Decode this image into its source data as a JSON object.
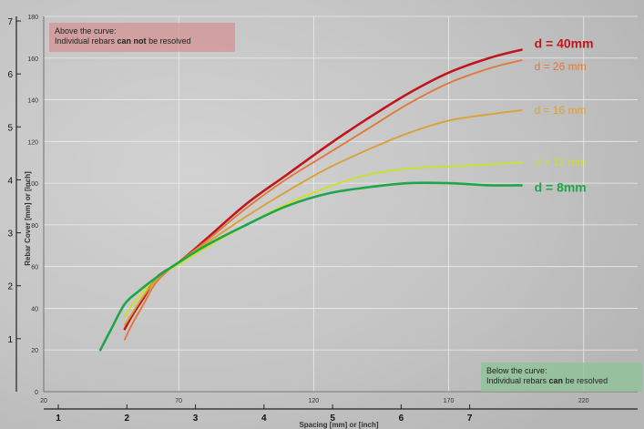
{
  "chart_data": {
    "type": "line",
    "xlabel": "Spacing [mm] or [inch]",
    "ylabel": "Rebar Cover [mm] or [inch]",
    "x_ticks_mm": [
      20,
      70,
      120,
      170,
      220
    ],
    "x_ticks_inch": [
      1,
      2,
      3,
      4,
      5,
      6,
      7
    ],
    "y_ticks_mm": [
      0,
      20,
      40,
      60,
      80,
      100,
      120,
      140,
      160,
      180
    ],
    "y_ticks_inch": [
      1,
      2,
      3,
      4,
      5,
      6,
      7
    ],
    "xlim": [
      20,
      240
    ],
    "ylim": [
      0,
      180
    ],
    "grid": true,
    "annotations": {
      "top": {
        "line1": "Above the curve:",
        "line2_pre": "Individual rebars ",
        "line2_bold": "can not",
        "line2_post": " be resolved"
      },
      "bottom": {
        "line1": "Below the curve:",
        "line2_pre": "Individual rebars ",
        "line2_bold": "can",
        "line2_post": " be resolved"
      }
    },
    "series": [
      {
        "name": "d = 40mm",
        "color": "#c0161b",
        "x": [
          50,
          53,
          57,
          62,
          70,
          80,
          95,
          110,
          125,
          140,
          155,
          170,
          185,
          197
        ],
        "y": [
          30,
          37,
          45,
          55,
          62,
          73,
          90,
          104,
          118,
          131,
          143,
          153,
          160,
          164
        ]
      },
      {
        "name": "d = 26 mm",
        "color": "#de7a3c",
        "x": [
          50,
          53,
          57,
          62,
          70,
          80,
          95,
          110,
          125,
          140,
          155,
          170,
          185,
          197
        ],
        "y": [
          25,
          33,
          42,
          53,
          62,
          72,
          88,
          102,
          114,
          126,
          138,
          148,
          155,
          159
        ]
      },
      {
        "name": "d = 16 mm",
        "color": "#d9a13a",
        "x": [
          50,
          53,
          57,
          62,
          70,
          80,
          95,
          110,
          125,
          140,
          155,
          170,
          185,
          197
        ],
        "y": [
          32,
          38,
          46,
          54,
          62,
          71,
          84,
          96,
          107,
          116,
          124,
          130,
          133,
          135
        ]
      },
      {
        "name": "d = 12 mm",
        "color": "#cde02a",
        "x": [
          50,
          53,
          57,
          62,
          70,
          80,
          95,
          110,
          125,
          140,
          155,
          170,
          185,
          197
        ],
        "y": [
          36,
          42,
          48,
          55,
          61,
          69,
          80,
          90,
          98,
          104,
          107,
          108,
          109,
          110
        ]
      },
      {
        "name": "d = 8mm",
        "color": "#1fa64a",
        "x": [
          41,
          45,
          50,
          55,
          62,
          70,
          80,
          95,
          110,
          125,
          140,
          155,
          170,
          185,
          197
        ],
        "y": [
          20,
          30,
          42,
          48,
          55,
          62,
          70,
          80,
          89,
          95,
          98,
          100,
          100,
          99,
          99
        ]
      }
    ]
  }
}
